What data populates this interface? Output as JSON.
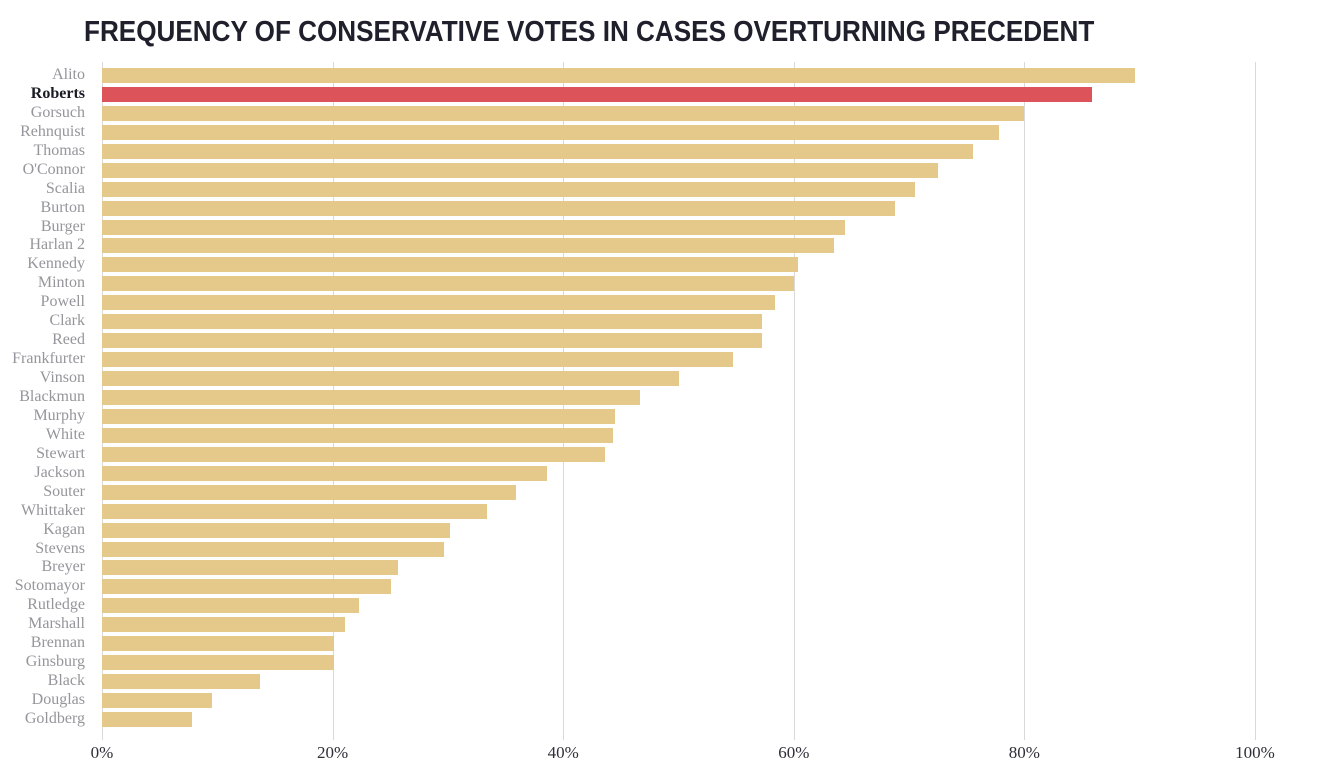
{
  "title": "FREQUENCY OF CONSERVATIVE VOTES IN CASES OVERTURNING PRECEDENT",
  "colors": {
    "bar_default": "#e5c98a",
    "bar_highlight": "#dc5459",
    "label_default": "#95959b",
    "label_highlight": "#1b1b25",
    "title": "#20202c",
    "gridline": "#d9d9d9",
    "axis_text": "#2e2e38",
    "background": "#ffffff"
  },
  "chart_data": {
    "type": "bar",
    "orientation": "horizontal",
    "title": "FREQUENCY OF CONSERVATIVE VOTES IN CASES OVERTURNING PRECEDENT",
    "xlabel": "",
    "ylabel": "",
    "xlim": [
      0,
      100
    ],
    "x_ticks": [
      {
        "value": 0,
        "label": "0%"
      },
      {
        "value": 20,
        "label": "20%"
      },
      {
        "value": 40,
        "label": "40%"
      },
      {
        "value": 60,
        "label": "60%"
      },
      {
        "value": 80,
        "label": "80%"
      },
      {
        "value": 100,
        "label": "100%"
      }
    ],
    "grid": "vertical",
    "legend": "none",
    "highlight_category": "Roberts",
    "categories": [
      "Alito",
      "Roberts",
      "Gorsuch",
      "Rehnquist",
      "Thomas",
      "O'Connor",
      "Scalia",
      "Burton",
      "Burger",
      "Harlan 2",
      "Kennedy",
      "Minton",
      "Powell",
      "Clark",
      "Reed",
      "Frankfurter",
      "Vinson",
      "Blackmun",
      "Murphy",
      "White",
      "Stewart",
      "Jackson",
      "Souter",
      "Whittaker",
      "Kagan",
      "Stevens",
      "Breyer",
      "Sotomayor",
      "Rutledge",
      "Marshall",
      "Brennan",
      "Ginsburg",
      "Black",
      "Douglas",
      "Goldberg"
    ],
    "values": [
      89.6,
      85.9,
      80.0,
      77.8,
      75.5,
      72.5,
      70.5,
      68.8,
      64.4,
      63.5,
      60.4,
      60.0,
      58.4,
      57.2,
      57.2,
      54.7,
      50.0,
      46.7,
      44.5,
      44.3,
      43.6,
      38.6,
      35.9,
      33.4,
      30.2,
      29.7,
      25.7,
      25.1,
      22.3,
      21.1,
      20.1,
      20.1,
      13.7,
      9.5,
      7.8
    ]
  }
}
